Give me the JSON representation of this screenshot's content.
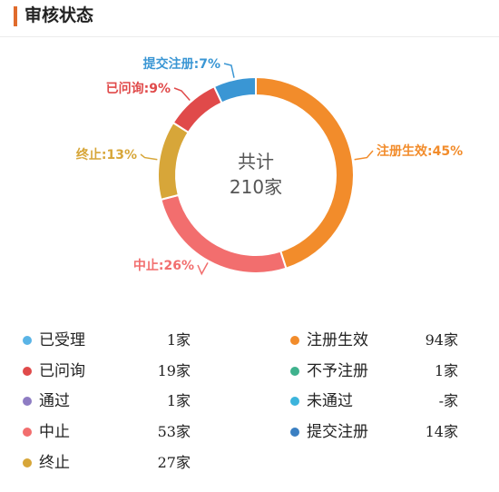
{
  "header": {
    "title": "审核状态"
  },
  "chart_data": {
    "type": "pie",
    "variant": "donut",
    "center_line1": "共计",
    "center_line2": "210家",
    "slices": [
      {
        "label": "注册生效:45%",
        "value": 45,
        "color": "#f28c2b"
      },
      {
        "label": "中止:26%",
        "value": 26,
        "color": "#f26e6e"
      },
      {
        "label": "终止:13%",
        "value": 13,
        "color": "#d7a639"
      },
      {
        "label": "已问询:9%",
        "value": 9,
        "color": "#e04a4a"
      },
      {
        "label": "提交注册:7%",
        "value": 7,
        "color": "#3a96d4"
      }
    ]
  },
  "legend": [
    {
      "label": "已受理",
      "value": "1家",
      "color": "#5ab4e6"
    },
    {
      "label": "已问询",
      "value": "19家",
      "color": "#e04a4a"
    },
    {
      "label": "通过",
      "value": "1家",
      "color": "#8e7cc3"
    },
    {
      "label": "中止",
      "value": "53家",
      "color": "#f26e6e"
    },
    {
      "label": "终止",
      "value": "27家",
      "color": "#d7a639"
    },
    {
      "label": "注册生效",
      "value": "94家",
      "color": "#f28c2b"
    },
    {
      "label": "不予注册",
      "value": "1家",
      "color": "#3fb28d"
    },
    {
      "label": "未通过",
      "value": "-家",
      "color": "#3cb4dc"
    },
    {
      "label": "提交注册",
      "value": "14家",
      "color": "#3a7fc2"
    }
  ]
}
